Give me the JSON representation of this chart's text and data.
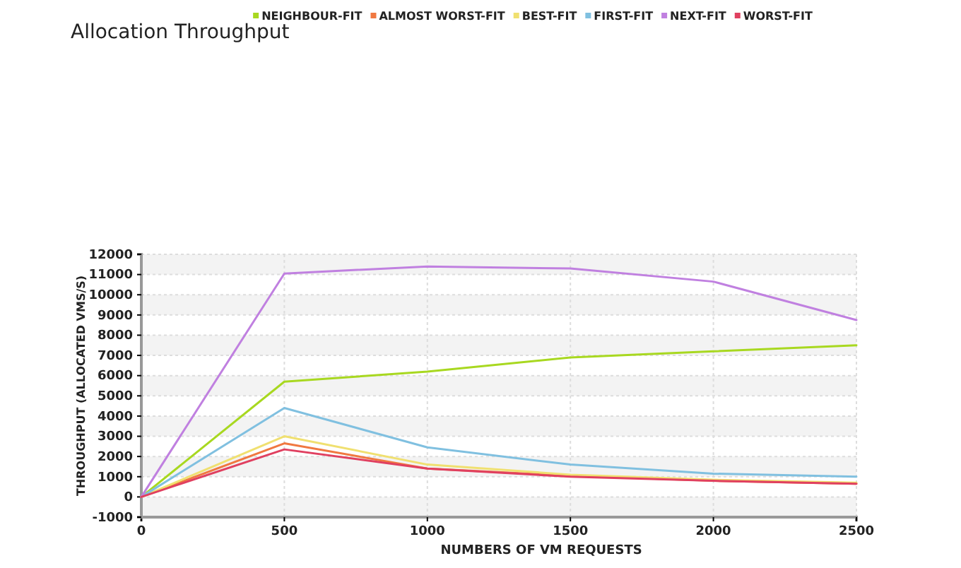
{
  "chart_data": {
    "type": "line",
    "title": "Allocation Throughput",
    "xlabel": "NUMBERS OF VM REQUESTS",
    "ylabel": "THROUGHPUT (ALLOCATED VMS/S)",
    "x": [
      0,
      500,
      1000,
      1500,
      2000,
      2500
    ],
    "series": [
      {
        "name": "NEIGHBOUR-FIT",
        "color": "#a8d820",
        "values": [
          0,
          5700,
          6200,
          6900,
          7200,
          7500
        ]
      },
      {
        "name": "ALMOST WORST-FIT",
        "color": "#f07840",
        "values": [
          0,
          2650,
          1400,
          1050,
          800,
          650
        ]
      },
      {
        "name": "BEST-FIT",
        "color": "#f0e070",
        "values": [
          0,
          3000,
          1600,
          1100,
          850,
          700
        ]
      },
      {
        "name": "FIRST-FIT",
        "color": "#80c0e0",
        "values": [
          0,
          4400,
          2450,
          1600,
          1150,
          1000
        ]
      },
      {
        "name": "NEXT-FIT",
        "color": "#c080e0",
        "values": [
          0,
          11050,
          11400,
          11300,
          10650,
          8750
        ]
      },
      {
        "name": "WORST-FIT",
        "color": "#e04060",
        "values": [
          0,
          2350,
          1400,
          1000,
          800,
          650
        ]
      }
    ],
    "xlim": [
      0,
      2500
    ],
    "xticks": [
      0,
      500,
      1000,
      1500,
      2000,
      2500
    ],
    "ylim": [
      -1000,
      12000
    ],
    "yticks": [
      -1000,
      0,
      1000,
      2000,
      3000,
      4000,
      5000,
      6000,
      7000,
      8000,
      9000,
      10000,
      11000,
      12000
    ],
    "grid": true,
    "legend": "top"
  }
}
